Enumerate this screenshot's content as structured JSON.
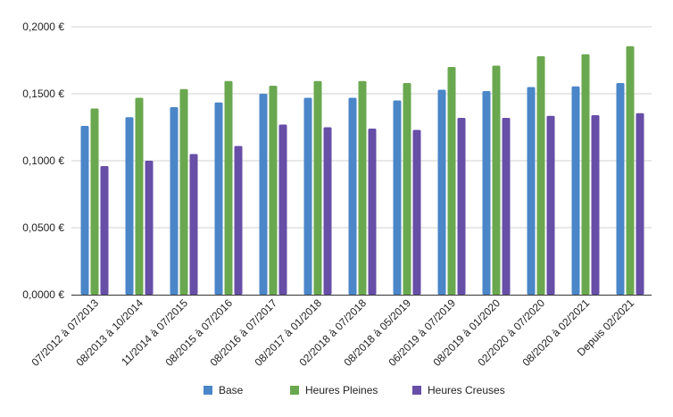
{
  "chart_data": {
    "type": "bar",
    "title": "",
    "xlabel": "",
    "ylabel": "",
    "categories": [
      "07/2012 à 07/2013",
      "08/2013 à 10/2014",
      "11/2014 à 07/2015",
      "08/2015 à 07/2016",
      "08/2016 à 07/2017",
      "08/2017 à 01/2018",
      "02/2018 à 07/2018",
      "08/2018 à 05/2019",
      "06/2019 à 07/2019",
      "08/2019 à 01/2020",
      "02/2020 à 07/2020",
      "08/2020 à 02/2021",
      "Depuis 02/2021"
    ],
    "series": [
      {
        "name": "Base",
        "color": "#4a86c8",
        "values": [
          0.126,
          0.1325,
          0.14,
          0.1435,
          0.15,
          0.147,
          0.147,
          0.145,
          0.153,
          0.152,
          0.155,
          0.1555,
          0.158
        ]
      },
      {
        "name": "Heures Pleines",
        "color": "#6aa84f",
        "values": [
          0.139,
          0.147,
          0.1535,
          0.1595,
          0.156,
          0.1595,
          0.1595,
          0.158,
          0.17,
          0.171,
          0.178,
          0.1795,
          0.1855
        ]
      },
      {
        "name": "Heures Creuses",
        "color": "#674ea7",
        "values": [
          0.096,
          0.1,
          0.105,
          0.111,
          0.127,
          0.125,
          0.124,
          0.123,
          0.132,
          0.132,
          0.1335,
          0.134,
          0.1355
        ]
      }
    ],
    "ylim": [
      0,
      0.2
    ],
    "y_ticks": [
      {
        "value": 0,
        "label": "0,0000 €"
      },
      {
        "value": 0.05,
        "label": "0,0500 €"
      },
      {
        "value": 0.1,
        "label": "0,1000 €"
      },
      {
        "value": 0.15,
        "label": "0,1500 €"
      },
      {
        "value": 0.2,
        "label": "0,2000 €"
      }
    ],
    "grid": true,
    "legend_position": "bottom-center"
  }
}
